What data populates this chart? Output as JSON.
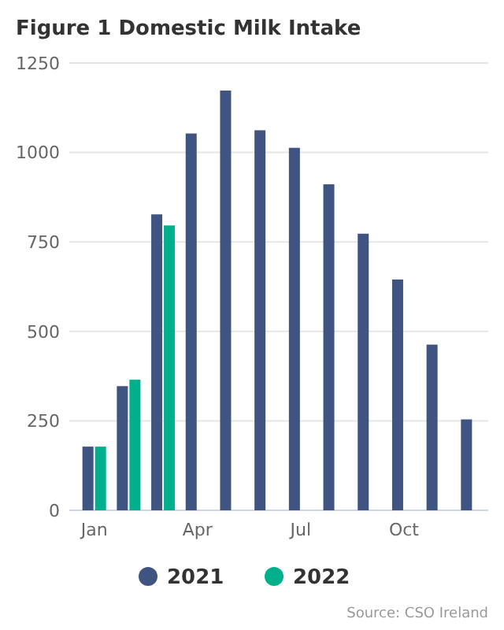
{
  "chart_data": {
    "type": "bar",
    "title": "Figure 1 Domestic Milk Intake",
    "categories": [
      "Jan",
      null,
      null,
      "Apr",
      null,
      null,
      "Jul",
      null,
      null,
      "Oct",
      null,
      null
    ],
    "series": [
      {
        "name": "2021",
        "color": "#3f5480",
        "values": [
          178,
          347,
          827,
          1053,
          1173,
          1062,
          1013,
          911,
          773,
          645,
          463,
          254
        ]
      },
      {
        "name": "2022",
        "color": "#00b08c",
        "values": [
          178,
          365,
          796,
          null,
          null,
          null,
          null,
          null,
          null,
          null,
          null,
          null
        ]
      }
    ],
    "ylim": [
      0,
      1250
    ],
    "yticks": [
      0,
      250,
      500,
      750,
      1000,
      1250
    ],
    "grid": "y",
    "legend": "bottom",
    "annotations": [
      "Source: CSO Ireland"
    ]
  }
}
